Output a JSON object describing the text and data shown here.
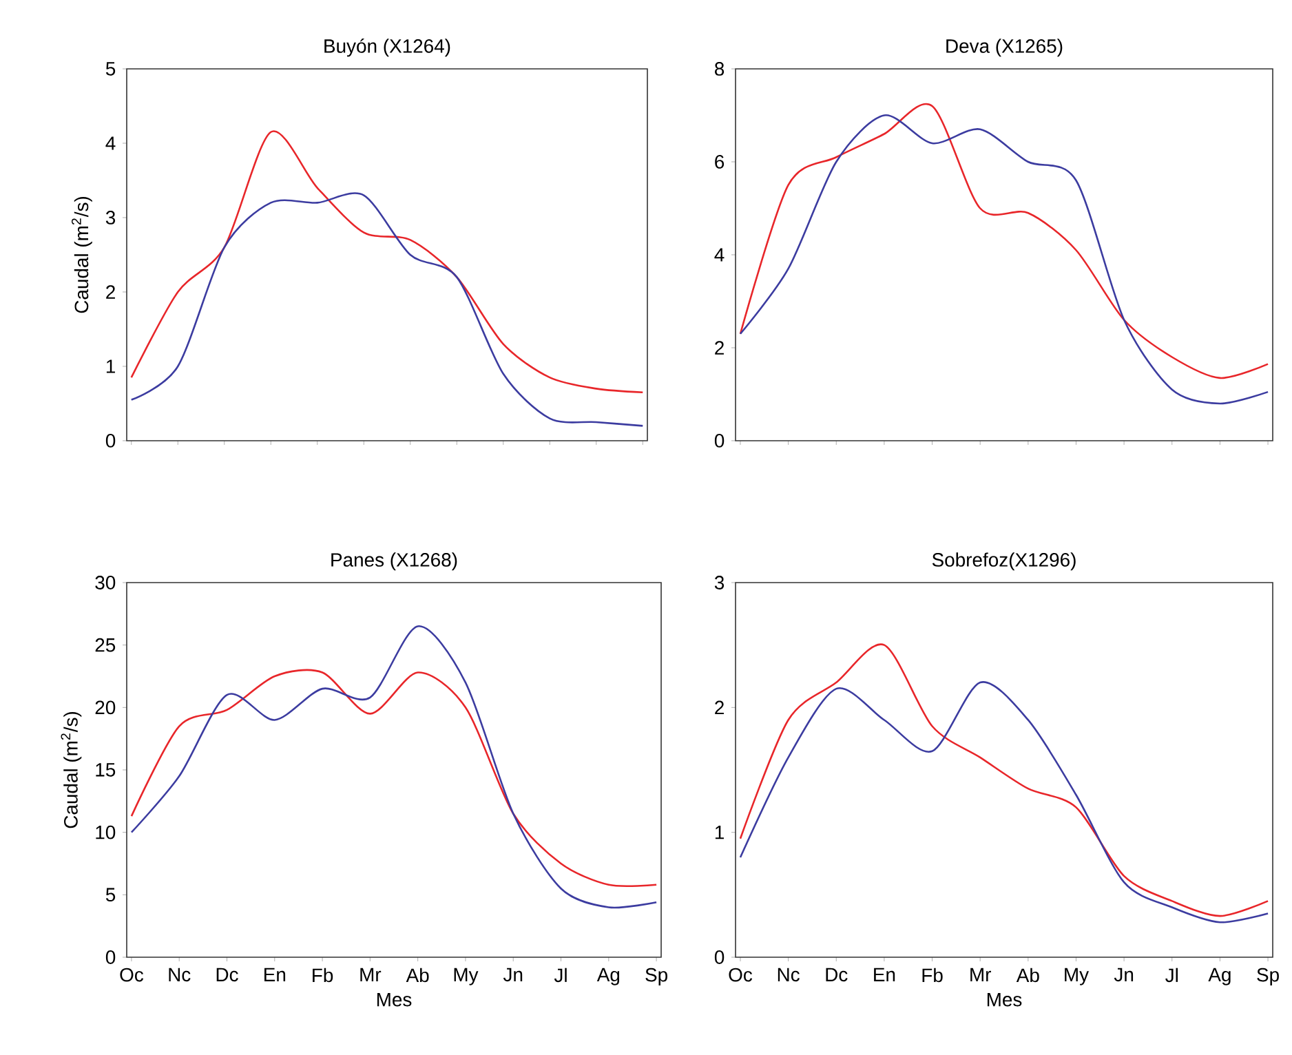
{
  "chart_data": [
    {
      "type": "line",
      "title": "Buyón (X1264)",
      "ylabel": "Caudal (m$^{2}$/s)",
      "categories": [
        null,
        null,
        null,
        null,
        null,
        null,
        null,
        null,
        null,
        null,
        null,
        null
      ],
      "tick_labels": "y",
      "ylim": [
        0,
        5
      ],
      "yticks": [
        0,
        1,
        2,
        3,
        4,
        5
      ],
      "series": [
        {
          "color": "#e8262a",
          "values": [
            0.85,
            2.0,
            2.6,
            4.15,
            3.4,
            2.8,
            2.7,
            2.2,
            1.3,
            0.85,
            0.7,
            0.65
          ]
        },
        {
          "color": "#3c3ca0",
          "values": [
            0.55,
            1.0,
            2.6,
            3.2,
            3.2,
            3.3,
            2.5,
            2.2,
            0.9,
            0.3,
            0.25,
            0.2
          ]
        }
      ]
    },
    {
      "type": "line",
      "title": "Deva (X1265)",
      "categories": [
        null,
        null,
        null,
        null,
        null,
        null,
        null,
        null,
        null,
        null,
        null,
        null
      ],
      "tick_labels": "y",
      "ylim": [
        0,
        8
      ],
      "yticks": [
        0,
        2,
        4,
        6,
        8
      ],
      "series": [
        {
          "color": "#e8262a",
          "values": [
            2.3,
            5.5,
            6.1,
            6.6,
            7.2,
            5.0,
            4.9,
            4.1,
            2.6,
            1.8,
            1.35,
            1.65
          ]
        },
        {
          "color": "#3c3ca0",
          "values": [
            2.3,
            3.7,
            6.0,
            7.0,
            6.4,
            6.7,
            6.0,
            5.6,
            2.6,
            1.1,
            0.8,
            1.05
          ]
        }
      ]
    },
    {
      "type": "line",
      "title": "Panes (X1268)",
      "xlabel": "Mes",
      "ylabel": "Caudal (m$^{2}$/s)",
      "categories": [
        "Oc",
        "Nc",
        "Dc",
        "En",
        "Fb",
        "Mr",
        "Ab",
        "My",
        "Jn",
        "Jl",
        "Ag",
        "Sp"
      ],
      "ylim": [
        0,
        30
      ],
      "yticks": [
        0,
        5,
        10,
        15,
        20,
        25,
        30
      ],
      "series": [
        {
          "color": "#e8262a",
          "values": [
            11.3,
            18.5,
            19.8,
            22.5,
            22.8,
            19.5,
            22.8,
            20,
            11.5,
            7.5,
            5.8,
            5.8
          ]
        },
        {
          "color": "#3c3ca0",
          "values": [
            10,
            14.5,
            21,
            19,
            21.5,
            20.8,
            26.5,
            22,
            11.5,
            5.5,
            4,
            4.4
          ]
        }
      ]
    },
    {
      "type": "line",
      "title": "Sobrefoz(X1296)",
      "xlabel": "Mes",
      "categories": [
        "Oc",
        "Nc",
        "Dc",
        "En",
        "Fb",
        "Mr",
        "Ab",
        "My",
        "Jn",
        "Jl",
        "Ag",
        "Sp"
      ],
      "ylim": [
        0,
        3
      ],
      "yticks": [
        0,
        1,
        2,
        3
      ],
      "series": [
        {
          "color": "#e8262a",
          "values": [
            0.95,
            1.9,
            2.2,
            2.5,
            1.85,
            1.6,
            1.35,
            1.2,
            0.65,
            0.45,
            0.33,
            0.45
          ]
        },
        {
          "color": "#3c3ca0",
          "values": [
            0.8,
            1.6,
            2.15,
            1.9,
            1.65,
            2.2,
            1.9,
            1.3,
            0.6,
            0.4,
            0.28,
            0.35
          ]
        }
      ]
    }
  ]
}
